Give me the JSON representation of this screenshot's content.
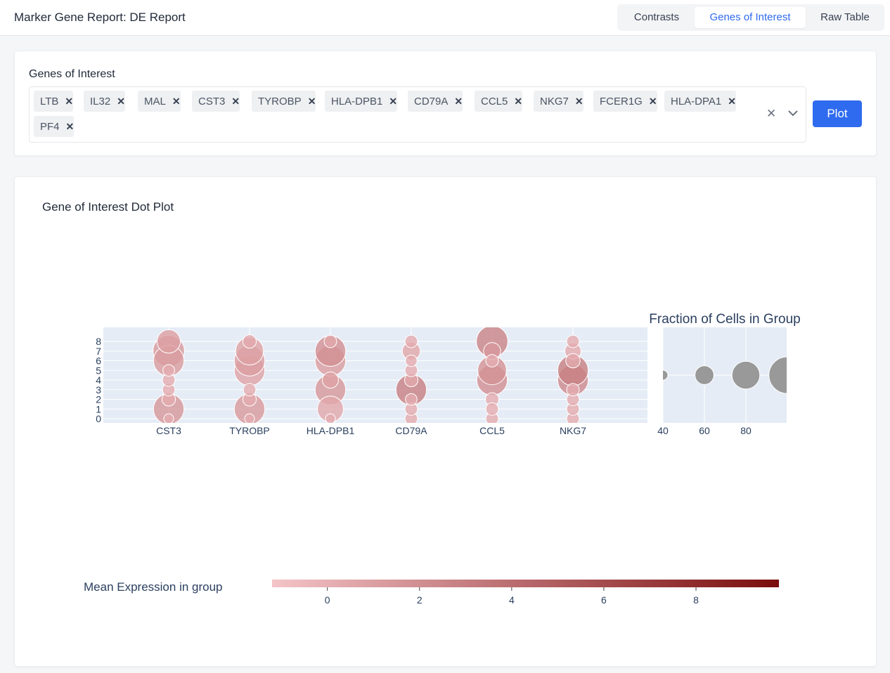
{
  "header": {
    "title": "Marker Gene Report: DE Report",
    "tabs": [
      {
        "label": "Contrasts",
        "active": false
      },
      {
        "label": "Genes of Interest",
        "active": true
      },
      {
        "label": "Raw Table",
        "active": false
      }
    ]
  },
  "genes_panel": {
    "label": "Genes of Interest",
    "chips": [
      "LTB",
      "IL32",
      "MAL",
      "CST3",
      "TYROBP",
      "HLA-DPB1",
      "CD79A",
      "CCL5",
      "NKG7",
      "FCER1G",
      "HLA-DPA1",
      "PF4"
    ],
    "clear_icon": "close-icon",
    "dropdown_icon": "chevron-down-icon",
    "plot_button": "Plot"
  },
  "plot_panel": {
    "title": "Gene of Interest Dot Plot"
  },
  "chart_data": {
    "type": "scatter",
    "subtype": "dot plot",
    "categories": [
      "CST3",
      "TYROBP",
      "HLA-DPB1",
      "CD79A",
      "CCL5",
      "NKG7"
    ],
    "y_ticks": [
      "0",
      "1",
      "2",
      "3",
      "4",
      "5",
      "6",
      "7",
      "8"
    ],
    "dots": [
      {
        "gene": "CST3",
        "group": 0,
        "fraction": 40,
        "expression": 0.2
      },
      {
        "gene": "CST3",
        "group": 1,
        "fraction": 86,
        "expression": 1.5
      },
      {
        "gene": "CST3",
        "group": 2,
        "fraction": 48,
        "expression": 0.3
      },
      {
        "gene": "CST3",
        "group": 3,
        "fraction": 46,
        "expression": 0.3
      },
      {
        "gene": "CST3",
        "group": 4,
        "fraction": 46,
        "expression": 0.3
      },
      {
        "gene": "CST3",
        "group": 5,
        "fraction": 44,
        "expression": 0.3
      },
      {
        "gene": "CST3",
        "group": 6,
        "fraction": 86,
        "expression": 1.2
      },
      {
        "gene": "CST3",
        "group": 7,
        "fraction": 88,
        "expression": 1.3
      },
      {
        "gene": "CST3",
        "group": 8,
        "fraction": 70,
        "expression": 1.0
      },
      {
        "gene": "TYROBP",
        "group": 0,
        "fraction": 40,
        "expression": 0.2
      },
      {
        "gene": "TYROBP",
        "group": 1,
        "fraction": 86,
        "expression": 1.3
      },
      {
        "gene": "TYROBP",
        "group": 2,
        "fraction": 48,
        "expression": 0.3
      },
      {
        "gene": "TYROBP",
        "group": 3,
        "fraction": 46,
        "expression": 0.3
      },
      {
        "gene": "TYROBP",
        "group": 5,
        "fraction": 86,
        "expression": 0.8
      },
      {
        "gene": "TYROBP",
        "group": 6,
        "fraction": 86,
        "expression": 1.1
      },
      {
        "gene": "TYROBP",
        "group": 7,
        "fraction": 80,
        "expression": 0.9
      },
      {
        "gene": "TYROBP",
        "group": 8,
        "fraction": 48,
        "expression": 0.4
      },
      {
        "gene": "HLA-DPB1",
        "group": 0,
        "fraction": 40,
        "expression": 0.2
      },
      {
        "gene": "HLA-DPB1",
        "group": 1,
        "fraction": 76,
        "expression": 0.5
      },
      {
        "gene": "HLA-DPB1",
        "group": 3,
        "fraction": 86,
        "expression": 1.5
      },
      {
        "gene": "HLA-DPB1",
        "group": 4,
        "fraction": 54,
        "expression": 0.9
      },
      {
        "gene": "HLA-DPB1",
        "group": 6,
        "fraction": 86,
        "expression": 1.2
      },
      {
        "gene": "HLA-DPB1",
        "group": 7,
        "fraction": 86,
        "expression": 1.9
      },
      {
        "gene": "HLA-DPB1",
        "group": 8,
        "fraction": 46,
        "expression": 0.5
      },
      {
        "gene": "CD79A",
        "group": 0,
        "fraction": 46,
        "expression": 0.3
      },
      {
        "gene": "CD79A",
        "group": 1,
        "fraction": 46,
        "expression": 0.3
      },
      {
        "gene": "CD79A",
        "group": 2,
        "fraction": 44,
        "expression": 0.3
      },
      {
        "gene": "CD79A",
        "group": 3,
        "fraction": 86,
        "expression": 2.9
      },
      {
        "gene": "CD79A",
        "group": 4,
        "fraction": 48,
        "expression": 0.4
      },
      {
        "gene": "CD79A",
        "group": 5,
        "fraction": 46,
        "expression": 0.3
      },
      {
        "gene": "CD79A",
        "group": 6,
        "fraction": 44,
        "expression": 0.3
      },
      {
        "gene": "CD79A",
        "group": 7,
        "fraction": 58,
        "expression": 0.6
      },
      {
        "gene": "CD79A",
        "group": 8,
        "fraction": 46,
        "expression": 0.3
      },
      {
        "gene": "CCL5",
        "group": 0,
        "fraction": 46,
        "expression": 0.3
      },
      {
        "gene": "CCL5",
        "group": 1,
        "fraction": 46,
        "expression": 0.3
      },
      {
        "gene": "CCL5",
        "group": 2,
        "fraction": 48,
        "expression": 0.3
      },
      {
        "gene": "CCL5",
        "group": 4,
        "fraction": 86,
        "expression": 2.0
      },
      {
        "gene": "CCL5",
        "group": 5,
        "fraction": 82,
        "expression": 1.8
      },
      {
        "gene": "CCL5",
        "group": 6,
        "fraction": 46,
        "expression": 0.3
      },
      {
        "gene": "CCL5",
        "group": 7,
        "fraction": 56,
        "expression": 1.4
      },
      {
        "gene": "CCL5",
        "group": 8,
        "fraction": 88,
        "expression": 2.7
      },
      {
        "gene": "NKG7",
        "group": 0,
        "fraction": 46,
        "expression": 0.3
      },
      {
        "gene": "NKG7",
        "group": 1,
        "fraction": 46,
        "expression": 0.3
      },
      {
        "gene": "NKG7",
        "group": 2,
        "fraction": 46,
        "expression": 0.3
      },
      {
        "gene": "NKG7",
        "group": 3,
        "fraction": 46,
        "expression": 0.3
      },
      {
        "gene": "NKG7",
        "group": 4,
        "fraction": 86,
        "expression": 2.3
      },
      {
        "gene": "NKG7",
        "group": 5,
        "fraction": 86,
        "expression": 2.9
      },
      {
        "gene": "NKG7",
        "group": 6,
        "fraction": 50,
        "expression": 0.4
      },
      {
        "gene": "NKG7",
        "group": 7,
        "fraction": 54,
        "expression": 0.4
      },
      {
        "gene": "NKG7",
        "group": 8,
        "fraction": 46,
        "expression": 0.3
      }
    ],
    "size_legend": {
      "title": "Fraction of Cells in Group",
      "ticks": [
        "40",
        "60",
        "80"
      ],
      "values": [
        40,
        60,
        80,
        100
      ],
      "color": "#999999"
    },
    "colorbar": {
      "title": "Mean Expression in group",
      "ticks": [
        "0",
        "2",
        "4",
        "6",
        "8"
      ],
      "range": [
        -1.2,
        9.8
      ],
      "colors": [
        "#f4c4c8",
        "#7a0d0d"
      ]
    }
  }
}
